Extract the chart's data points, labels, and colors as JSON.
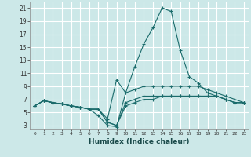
{
  "xlabel": "Humidex (Indice chaleur)",
  "ylabel": "",
  "xlim": [
    -0.5,
    23.5
  ],
  "ylim": [
    2.5,
    22
  ],
  "yticks": [
    3,
    5,
    7,
    9,
    11,
    13,
    15,
    17,
    19,
    21
  ],
  "xticks": [
    0,
    1,
    2,
    3,
    4,
    5,
    6,
    7,
    8,
    9,
    10,
    11,
    12,
    13,
    14,
    15,
    16,
    17,
    18,
    19,
    20,
    21,
    22,
    23
  ],
  "bg_color": "#cce8e8",
  "grid_color": "#b0d8d8",
  "line_color": "#1a6b6b",
  "lines": [
    {
      "x": [
        0,
        1,
        2,
        3,
        4,
        5,
        6,
        7,
        8,
        9,
        10,
        11,
        12,
        13,
        14,
        15,
        16,
        17,
        18,
        19,
        20,
        21,
        22,
        23
      ],
      "y": [
        6.0,
        6.8,
        6.5,
        6.3,
        6.0,
        5.8,
        5.5,
        5.5,
        3.5,
        3.0,
        6.5,
        7.0,
        7.5,
        7.5,
        7.5,
        7.5,
        7.5,
        7.5,
        7.5,
        7.5,
        7.5,
        7.0,
        6.5,
        6.5
      ]
    },
    {
      "x": [
        0,
        1,
        2,
        3,
        4,
        5,
        6,
        7,
        8,
        9,
        10,
        11,
        12,
        13,
        14,
        15,
        16,
        17,
        18,
        19,
        20,
        21,
        22,
        23
      ],
      "y": [
        6.0,
        6.8,
        6.5,
        6.3,
        6.0,
        5.8,
        5.5,
        4.5,
        3.0,
        2.8,
        8.0,
        12.0,
        15.5,
        18.0,
        21.0,
        20.5,
        14.5,
        10.5,
        9.5,
        8.0,
        7.5,
        7.0,
        6.5,
        6.5
      ]
    },
    {
      "x": [
        0,
        1,
        2,
        3,
        4,
        5,
        6,
        7,
        8,
        9,
        10,
        11,
        12,
        13,
        14,
        15,
        16,
        17,
        18,
        19,
        20,
        21,
        22,
        23
      ],
      "y": [
        6.0,
        6.8,
        6.5,
        6.3,
        6.0,
        5.8,
        5.5,
        5.5,
        4.0,
        10.0,
        8.0,
        8.5,
        9.0,
        9.0,
        9.0,
        9.0,
        9.0,
        9.0,
        9.0,
        8.5,
        8.0,
        7.5,
        7.0,
        6.5
      ]
    },
    {
      "x": [
        0,
        1,
        2,
        3,
        4,
        5,
        6,
        7,
        8,
        9,
        10,
        11,
        12,
        13,
        14,
        15,
        16,
        17,
        18,
        19,
        20,
        21,
        22,
        23
      ],
      "y": [
        6.0,
        6.8,
        6.5,
        6.3,
        6.0,
        5.8,
        5.5,
        5.5,
        3.5,
        3.0,
        6.0,
        6.5,
        7.0,
        7.0,
        7.5,
        7.5,
        7.5,
        7.5,
        7.5,
        7.5,
        7.5,
        7.0,
        6.5,
        6.5
      ]
    }
  ]
}
